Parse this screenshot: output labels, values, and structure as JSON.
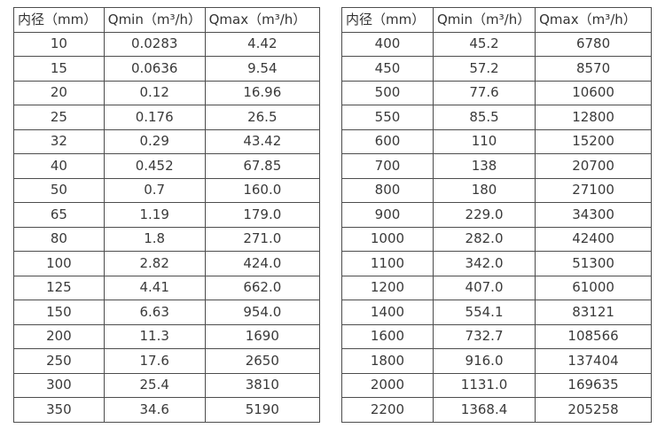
{
  "colors": {
    "border": "#4d4d4d",
    "text": "#3a3a3a",
    "background": "#ffffff"
  },
  "chart_data": [
    {
      "type": "table",
      "title": "",
      "columns": [
        "内径（mm）",
        "Qmin（m³/h）",
        "Qmax（m³/h）"
      ],
      "rows": [
        [
          "10",
          "0.0283",
          "4.42"
        ],
        [
          "15",
          "0.0636",
          "9.54"
        ],
        [
          "20",
          "0.12",
          "16.96"
        ],
        [
          "25",
          "0.176",
          "26.5"
        ],
        [
          "32",
          "0.29",
          "43.42"
        ],
        [
          "40",
          "0.452",
          "67.85"
        ],
        [
          "50",
          "0.7",
          "160.0"
        ],
        [
          "65",
          "1.19",
          "179.0"
        ],
        [
          "80",
          "1.8",
          "271.0"
        ],
        [
          "100",
          "2.82",
          "424.0"
        ],
        [
          "125",
          "4.41",
          "662.0"
        ],
        [
          "150",
          "6.63",
          "954.0"
        ],
        [
          "200",
          "11.3",
          "1690"
        ],
        [
          "250",
          "17.6",
          "2650"
        ],
        [
          "300",
          "25.4",
          "3810"
        ],
        [
          "350",
          "34.6",
          "5190"
        ]
      ]
    },
    {
      "type": "table",
      "title": "",
      "columns": [
        "内径（mm）",
        "Qmin（m³/h）",
        "Qmax（m³/h）"
      ],
      "rows": [
        [
          "400",
          "45.2",
          "6780"
        ],
        [
          "450",
          "57.2",
          "8570"
        ],
        [
          "500",
          "77.6",
          "10600"
        ],
        [
          "550",
          "85.5",
          "12800"
        ],
        [
          "600",
          "110",
          "15200"
        ],
        [
          "700",
          "138",
          "20700"
        ],
        [
          "800",
          "180",
          "27100"
        ],
        [
          "900",
          "229.0",
          "34300"
        ],
        [
          "1000",
          "282.0",
          "42400"
        ],
        [
          "1100",
          "342.0",
          "51300"
        ],
        [
          "1200",
          "407.0",
          "61000"
        ],
        [
          "1400",
          "554.1",
          "83121"
        ],
        [
          "1600",
          "732.7",
          "108566"
        ],
        [
          "1800",
          "916.0",
          "137404"
        ],
        [
          "2000",
          "1131.0",
          "169635"
        ],
        [
          "2200",
          "1368.4",
          "205258"
        ]
      ]
    }
  ]
}
